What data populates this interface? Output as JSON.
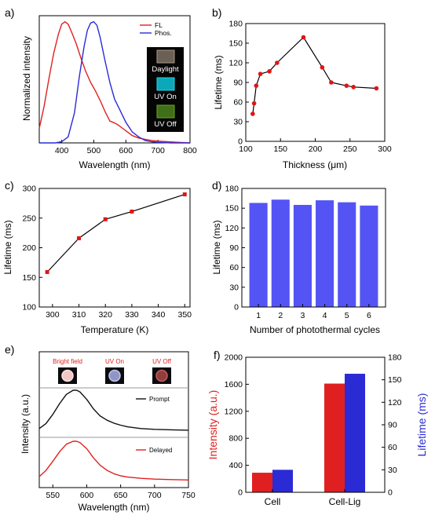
{
  "colors": {
    "red": "#e02020",
    "blue": "#2b2bd6",
    "bar_blue": "#5454f5",
    "black": "#111111",
    "marker_red": "#e01515"
  },
  "chart_data": [
    {
      "panel_label": "a)",
      "type": "line",
      "xlabel": "Wavelength (nm)",
      "ylabel": "Normalized intensity",
      "xlim": [
        330,
        800
      ],
      "ylim": [
        0,
        1.05
      ],
      "x_ticks": [
        400,
        500,
        600,
        700,
        800
      ],
      "legend": {
        "placement": "top-right"
      },
      "series": [
        {
          "name": "FL",
          "color": "red",
          "x": [
            330,
            345,
            360,
            375,
            390,
            400,
            410,
            420,
            430,
            445,
            460,
            475,
            490,
            505,
            520,
            535,
            550,
            560,
            575,
            590,
            605,
            620,
            640,
            660,
            680,
            700,
            730,
            760,
            800
          ],
          "y": [
            0.12,
            0.3,
            0.53,
            0.74,
            0.9,
            0.98,
            1.0,
            0.98,
            0.92,
            0.82,
            0.7,
            0.59,
            0.5,
            0.43,
            0.35,
            0.26,
            0.18,
            0.17,
            0.15,
            0.12,
            0.09,
            0.06,
            0.04,
            0.03,
            0.02,
            0.015,
            0.01,
            0.005,
            0.0
          ]
        },
        {
          "name": "Phos.",
          "color": "blue",
          "x": [
            330,
            380,
            400,
            420,
            440,
            455,
            470,
            480,
            490,
            500,
            510,
            520,
            535,
            550,
            565,
            580,
            600,
            620,
            640,
            660,
            680,
            700,
            740,
            800
          ],
          "y": [
            0.0,
            0.0,
            0.01,
            0.05,
            0.25,
            0.55,
            0.8,
            0.93,
            0.99,
            1.0,
            0.97,
            0.87,
            0.68,
            0.5,
            0.36,
            0.28,
            0.17,
            0.09,
            0.05,
            0.02,
            0.01,
            0.005,
            0.0,
            0.0
          ]
        }
      ],
      "photo_labels": [
        "Daylight",
        "UV On",
        "UV Off"
      ]
    },
    {
      "panel_label": "b)",
      "type": "line",
      "xlabel": "Thickness (μm)",
      "ylabel": "Lifetime (ms)",
      "xlim": [
        100,
        300
      ],
      "ylim": [
        0,
        180
      ],
      "x_ticks": [
        100,
        150,
        200,
        250,
        300
      ],
      "y_ticks": [
        0,
        30,
        60,
        90,
        120,
        150,
        180
      ],
      "x": [
        110,
        112,
        115,
        121,
        134,
        145,
        183,
        210,
        223,
        245,
        255,
        288
      ],
      "y": [
        42,
        58,
        85,
        103,
        107,
        120,
        159,
        113,
        90,
        85,
        83,
        81
      ]
    },
    {
      "panel_label": "c)",
      "type": "line",
      "xlabel": "Temperature (K)",
      "ylabel": "Lifetime (ms)",
      "xlim": [
        295,
        352
      ],
      "ylim": [
        100,
        300
      ],
      "x_ticks": [
        300,
        310,
        320,
        330,
        340,
        350
      ],
      "y_ticks": [
        100,
        150,
        200,
        250,
        300
      ],
      "x": [
        298,
        310,
        320,
        330,
        350
      ],
      "y": [
        159,
        216,
        248,
        261,
        290
      ]
    },
    {
      "panel_label": "d)",
      "type": "bar",
      "xlabel": "Number of photothermal cycles",
      "ylabel": "Lifetime (ms)",
      "categories": [
        "1",
        "2",
        "3",
        "4",
        "5",
        "6"
      ],
      "values": [
        158,
        163,
        155,
        162,
        159,
        154
      ],
      "ylim": [
        0,
        180
      ],
      "y_ticks": [
        0,
        30,
        60,
        90,
        120,
        150,
        180
      ]
    },
    {
      "panel_label": "e)",
      "type": "line",
      "xlabel": "Wavelength (nm)",
      "ylabel": "Intensity (a.u.)",
      "xlim": [
        530,
        750
      ],
      "x_ticks": [
        550,
        600,
        650,
        700,
        750
      ],
      "photo_labels": [
        "Bright field",
        "UV On",
        "UV Off"
      ],
      "series": [
        {
          "name": "Prompt",
          "color": "black",
          "x": [
            530,
            540,
            550,
            560,
            570,
            580,
            585,
            590,
            600,
            610,
            620,
            630,
            640,
            650,
            660,
            680,
            700,
            725,
            750
          ],
          "y": [
            0.08,
            0.2,
            0.42,
            0.68,
            0.9,
            1.0,
            1.0,
            0.96,
            0.78,
            0.55,
            0.38,
            0.28,
            0.21,
            0.16,
            0.12,
            0.08,
            0.06,
            0.05,
            0.04
          ]
        },
        {
          "name": "Delayed",
          "color": "red",
          "x": [
            530,
            540,
            550,
            560,
            570,
            580,
            585,
            590,
            600,
            610,
            620,
            630,
            640,
            650,
            660,
            680,
            700,
            725,
            750
          ],
          "y": [
            0.15,
            0.3,
            0.52,
            0.75,
            0.93,
            1.0,
            1.0,
            0.97,
            0.82,
            0.6,
            0.42,
            0.3,
            0.22,
            0.17,
            0.14,
            0.11,
            0.09,
            0.08,
            0.07
          ]
        }
      ]
    },
    {
      "panel_label": "f)",
      "type": "bar",
      "categories": [
        "Cell",
        "Cell-Lig"
      ],
      "ylabel": "Intensity (a.u.)",
      "ylabel_right": "Lifetime (ms)",
      "ylim": [
        0,
        2000
      ],
      "ylim_right": [
        0,
        180
      ],
      "y_ticks": [
        0,
        400,
        800,
        1200,
        1600,
        2000
      ],
      "y_ticks_right": [
        0,
        30,
        60,
        90,
        120,
        150,
        180
      ],
      "series": [
        {
          "name": "Intensity",
          "color": "red",
          "axis": "left",
          "values": [
            290,
            1610
          ]
        },
        {
          "name": "Lifetime",
          "color": "blue",
          "axis": "right",
          "values": [
            30,
            158
          ]
        }
      ]
    }
  ]
}
